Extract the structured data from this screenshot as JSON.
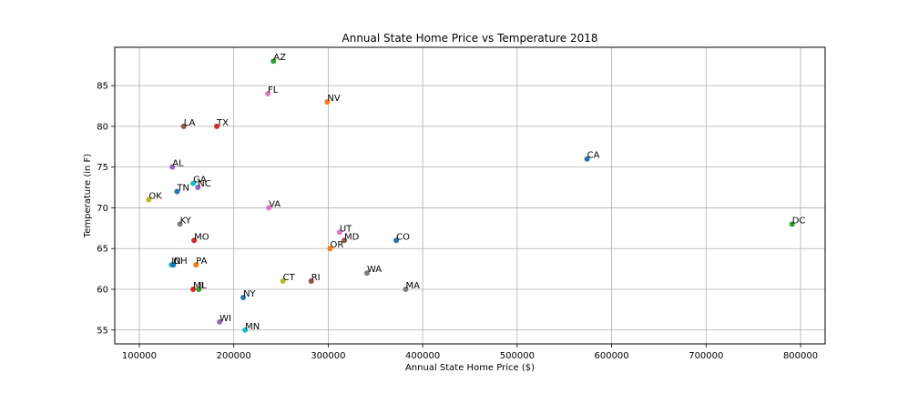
{
  "chart_data": {
    "type": "scatter",
    "title": "Annual State Home Price vs Temperature 2018",
    "xlabel": "Annual State Home Price ($)",
    "ylabel": "Temperature (in F)",
    "xlim": [
      74000,
      826000
    ],
    "ylim": [
      53.3,
      89.7
    ],
    "xticks": [
      100000,
      200000,
      300000,
      400000,
      500000,
      600000,
      700000,
      800000
    ],
    "yticks": [
      55,
      60,
      65,
      70,
      75,
      80,
      85
    ],
    "grid": true,
    "legend": "none",
    "points": [
      {
        "label": "AZ",
        "x": 242000,
        "y": 88,
        "color": "#2ca02c"
      },
      {
        "label": "FL",
        "x": 236000,
        "y": 84,
        "color": "#e377c2"
      },
      {
        "label": "NV",
        "x": 299000,
        "y": 83,
        "color": "#ff7f0e"
      },
      {
        "label": "LA",
        "x": 147000,
        "y": 80,
        "color": "#8c564b"
      },
      {
        "label": "TX",
        "x": 182000,
        "y": 80,
        "color": "#d62728"
      },
      {
        "label": "CA",
        "x": 574000,
        "y": 76,
        "color": "#1f77b4"
      },
      {
        "label": "AL",
        "x": 135000,
        "y": 75,
        "color": "#9467bd"
      },
      {
        "label": "GA",
        "x": 157000,
        "y": 73,
        "color": "#17becf"
      },
      {
        "label": "NC",
        "x": 162000,
        "y": 72.5,
        "color": "#9467bd"
      },
      {
        "label": "TN",
        "x": 140000,
        "y": 72,
        "color": "#1f77b4"
      },
      {
        "label": "OK",
        "x": 110000,
        "y": 71,
        "color": "#bcbd22"
      },
      {
        "label": "VA",
        "x": 237000,
        "y": 70,
        "color": "#e377c2"
      },
      {
        "label": "DC",
        "x": 791000,
        "y": 68,
        "color": "#2ca02c"
      },
      {
        "label": "KY",
        "x": 143000,
        "y": 68,
        "color": "#7f7f7f"
      },
      {
        "label": "UT",
        "x": 312000,
        "y": 67,
        "color": "#e377c2"
      },
      {
        "label": "MO",
        "x": 158000,
        "y": 66,
        "color": "#d62728"
      },
      {
        "label": "MD",
        "x": 317000,
        "y": 66,
        "color": "#8c564b"
      },
      {
        "label": "CO",
        "x": 372000,
        "y": 66,
        "color": "#1f77b4"
      },
      {
        "label": "OR",
        "x": 302000,
        "y": 65,
        "color": "#ff7f0e"
      },
      {
        "label": "IN",
        "x": 134000,
        "y": 63,
        "color": "#17becf"
      },
      {
        "label": "OH",
        "x": 136000,
        "y": 63,
        "color": "#1f77b4"
      },
      {
        "label": "PA",
        "x": 160000,
        "y": 63,
        "color": "#ff7f0e"
      },
      {
        "label": "WA",
        "x": 341000,
        "y": 62,
        "color": "#7f7f7f"
      },
      {
        "label": "CT",
        "x": 252000,
        "y": 61,
        "color": "#bcbd22"
      },
      {
        "label": "RI",
        "x": 282000,
        "y": 61,
        "color": "#8c564b"
      },
      {
        "label": "MI",
        "x": 157000,
        "y": 60,
        "color": "#d62728"
      },
      {
        "label": "IL",
        "x": 163000,
        "y": 60,
        "color": "#2ca02c"
      },
      {
        "label": "MA",
        "x": 382000,
        "y": 60,
        "color": "#7f7f7f"
      },
      {
        "label": "NY",
        "x": 210000,
        "y": 59,
        "color": "#1f77b4"
      },
      {
        "label": "WI",
        "x": 185000,
        "y": 56,
        "color": "#9467bd"
      },
      {
        "label": "MN",
        "x": 212000,
        "y": 55,
        "color": "#17becf"
      }
    ]
  }
}
